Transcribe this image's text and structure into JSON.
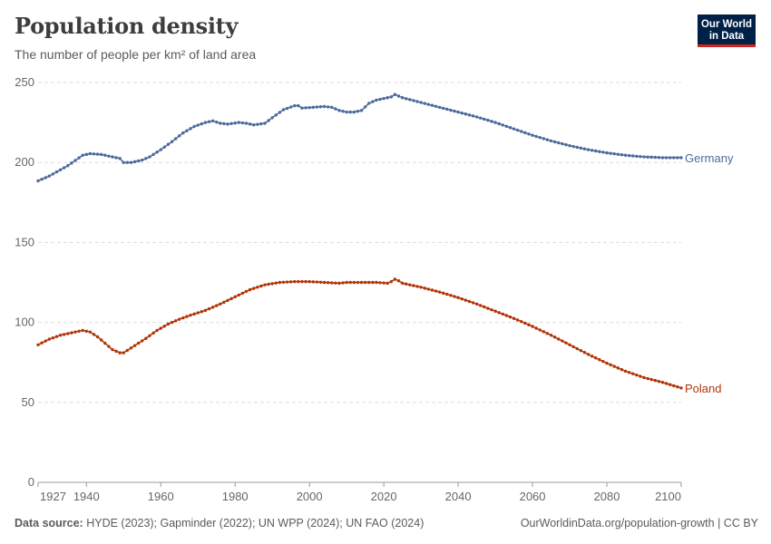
{
  "header": {
    "title": "Population density",
    "subtitle": "The number of people per km² of land area",
    "logo_line1": "Our World",
    "logo_line2": "in Data"
  },
  "footer": {
    "source_label": "Data source:",
    "source_text": "HYDE (2023); Gapminder (2022); UN WPP (2024); UN FAO (2024)",
    "link_text": "OurWorldinData.org/population-growth",
    "license": "| CC BY"
  },
  "chart_data": {
    "type": "line",
    "title": "Population density",
    "subtitle": "The number of people per km² of land area",
    "xlabel": "",
    "ylabel": "",
    "xlim": [
      1927,
      2100
    ],
    "ylim": [
      0,
      250
    ],
    "x_ticks": [
      "1927",
      "1940",
      "1960",
      "1980",
      "2000",
      "2020",
      "2040",
      "2060",
      "2080",
      "2100"
    ],
    "y_ticks": [
      "0",
      "50",
      "100",
      "150",
      "200",
      "250"
    ],
    "grid": "horizontal dashed",
    "legend": "inline labels at line ends (right)",
    "series": [
      {
        "name": "Germany",
        "color": "#4c6a9c",
        "points": [
          [
            1927,
            188.5
          ],
          [
            1930,
            191.5
          ],
          [
            1935,
            198
          ],
          [
            1939,
            204.5
          ],
          [
            1941,
            205.5
          ],
          [
            1944,
            205
          ],
          [
            1947,
            203.5
          ],
          [
            1949,
            202.5
          ],
          [
            1950,
            200
          ],
          [
            1952,
            200
          ],
          [
            1955,
            201.5
          ],
          [
            1957,
            203.5
          ],
          [
            1960,
            208
          ],
          [
            1963,
            213
          ],
          [
            1966,
            218.5
          ],
          [
            1969,
            222.5
          ],
          [
            1972,
            225
          ],
          [
            1974,
            226
          ],
          [
            1976,
            224.5
          ],
          [
            1978,
            224
          ],
          [
            1981,
            225
          ],
          [
            1983,
            224.5
          ],
          [
            1985,
            223.5
          ],
          [
            1988,
            224.5
          ],
          [
            1990,
            228
          ],
          [
            1993,
            233
          ],
          [
            1996,
            235.5
          ],
          [
            1997,
            235.5
          ],
          [
            1998,
            234
          ],
          [
            2001,
            234.5
          ],
          [
            2004,
            235
          ],
          [
            2006,
            234.5
          ],
          [
            2008,
            232.5
          ],
          [
            2010,
            231.5
          ],
          [
            2012,
            231.5
          ],
          [
            2014,
            232.5
          ],
          [
            2016,
            237
          ],
          [
            2018,
            239
          ],
          [
            2020,
            240
          ],
          [
            2022,
            241
          ],
          [
            2023,
            242.5
          ],
          [
            2024,
            241.5
          ],
          [
            2025,
            240.5
          ],
          [
            2030,
            237.5
          ],
          [
            2035,
            234.5
          ],
          [
            2040,
            231.5
          ],
          [
            2045,
            228.5
          ],
          [
            2050,
            225
          ],
          [
            2055,
            221
          ],
          [
            2060,
            217
          ],
          [
            2065,
            213.5
          ],
          [
            2070,
            210.5
          ],
          [
            2075,
            208
          ],
          [
            2080,
            206
          ],
          [
            2085,
            204.5
          ],
          [
            2090,
            203.5
          ],
          [
            2095,
            203
          ],
          [
            2100,
            203
          ]
        ]
      },
      {
        "name": "Poland",
        "color": "#b13507",
        "points": [
          [
            1927,
            86
          ],
          [
            1930,
            89.5
          ],
          [
            1933,
            92
          ],
          [
            1936,
            93.5
          ],
          [
            1939,
            95
          ],
          [
            1941,
            94
          ],
          [
            1943,
            91
          ],
          [
            1945,
            87
          ],
          [
            1947,
            83
          ],
          [
            1949,
            81
          ],
          [
            1950,
            81
          ],
          [
            1953,
            85.5
          ],
          [
            1956,
            90
          ],
          [
            1959,
            95
          ],
          [
            1962,
            99
          ],
          [
            1965,
            102
          ],
          [
            1968,
            104.5
          ],
          [
            1972,
            107.5
          ],
          [
            1976,
            111.5
          ],
          [
            1980,
            116
          ],
          [
            1984,
            120.5
          ],
          [
            1988,
            123.5
          ],
          [
            1992,
            125
          ],
          [
            1996,
            125.5
          ],
          [
            2000,
            125.5
          ],
          [
            2004,
            125
          ],
          [
            2008,
            124.5
          ],
          [
            2010,
            125
          ],
          [
            2014,
            125
          ],
          [
            2018,
            125
          ],
          [
            2021,
            124.5
          ],
          [
            2022,
            125.5
          ],
          [
            2023,
            127
          ],
          [
            2024,
            126
          ],
          [
            2025,
            124.5
          ],
          [
            2030,
            122
          ],
          [
            2035,
            119
          ],
          [
            2040,
            115.5
          ],
          [
            2045,
            111.5
          ],
          [
            2050,
            107
          ],
          [
            2055,
            102.5
          ],
          [
            2060,
            97.5
          ],
          [
            2065,
            92
          ],
          [
            2070,
            86
          ],
          [
            2075,
            80
          ],
          [
            2080,
            74.5
          ],
          [
            2085,
            69.5
          ],
          [
            2090,
            65.5
          ],
          [
            2095,
            62.5
          ],
          [
            2100,
            59
          ]
        ]
      }
    ]
  }
}
